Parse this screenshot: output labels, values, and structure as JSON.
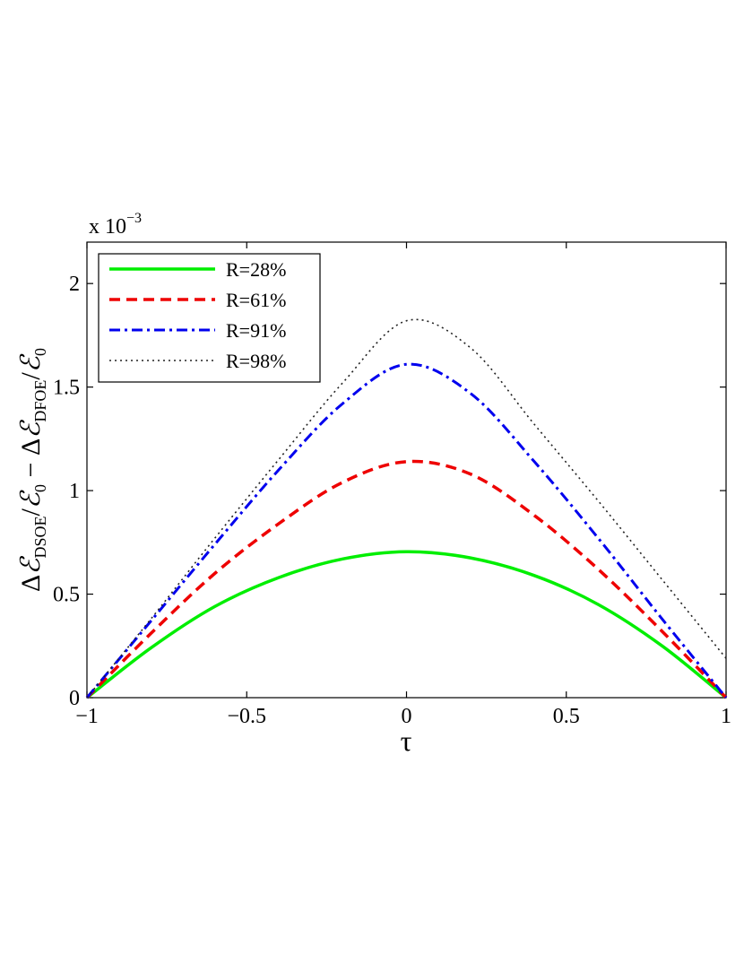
{
  "chart_data": {
    "type": "line",
    "title": "",
    "xlabel": "τ",
    "ylabel": {
      "prefix": "Δ",
      "e1": "ℰ",
      "sub1": "DSOE",
      "mid": "/",
      "e2": "ℰ",
      "sub2": "0",
      "minus": " − Δ",
      "e3": "ℰ",
      "sub3": "DFOE",
      "mid2": "/",
      "e4": "ℰ",
      "sub4": "0"
    },
    "scale_label": {
      "base": "x 10",
      "exp": "−3"
    },
    "xlim": [
      -1,
      1
    ],
    "ylim": [
      0,
      2.2
    ],
    "xticks": [
      -1,
      -0.5,
      0,
      0.5,
      1
    ],
    "xtick_labels": [
      "−1",
      "−0.5",
      "0",
      "0.5",
      "1"
    ],
    "yticks": [
      0,
      0.5,
      1,
      1.5,
      2
    ],
    "ytick_labels": [
      "0",
      "0.5",
      "1",
      "1.5",
      "2"
    ],
    "grid": false,
    "legend_position": "top-left",
    "x": [
      -1,
      -0.8,
      -0.6,
      -0.4,
      -0.2,
      0,
      0.2,
      0.4,
      0.6,
      0.8,
      1
    ],
    "series": [
      {
        "name": "R=28%",
        "color": "#00ee00",
        "dash": "solid",
        "values": [
          0,
          0.24,
          0.44,
          0.58,
          0.67,
          0.705,
          0.675,
          0.59,
          0.45,
          0.25,
          0
        ]
      },
      {
        "name": "R=61%",
        "color": "#ee0000",
        "dash": "dashed",
        "values": [
          0,
          0.31,
          0.6,
          0.84,
          1.04,
          1.14,
          1.08,
          0.88,
          0.62,
          0.32,
          0
        ]
      },
      {
        "name": "R=91%",
        "color": "#0000ee",
        "dash": "dashdot",
        "values": [
          0,
          0.37,
          0.74,
          1.1,
          1.42,
          1.61,
          1.47,
          1.14,
          0.77,
          0.38,
          0
        ]
      },
      {
        "name": "R=98%",
        "color": "#222222",
        "dash": "dotted",
        "values": [
          0,
          0.38,
          0.77,
          1.15,
          1.52,
          1.82,
          1.69,
          1.32,
          0.95,
          0.57,
          0.19
        ]
      }
    ]
  }
}
